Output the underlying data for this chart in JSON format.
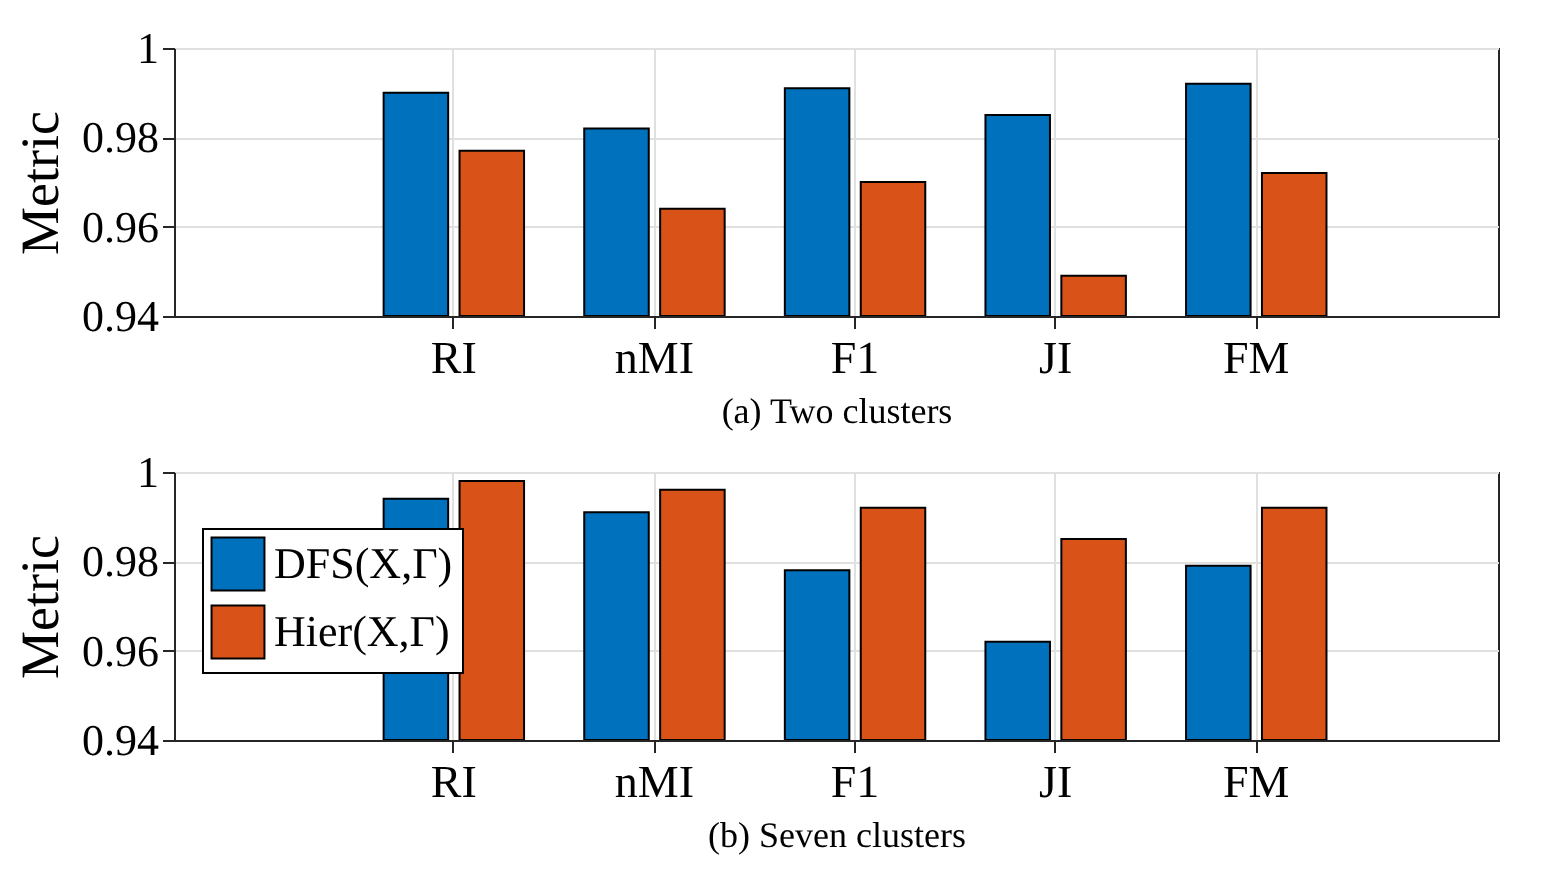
{
  "chart_data": [
    {
      "type": "bar",
      "xlabel": "(a) Two clusters",
      "ylabel": "Metric",
      "categories": [
        "RI",
        "nMI",
        "F1",
        "JI",
        "FM"
      ],
      "series": [
        {
          "color": "#0072bd",
          "values": [
            0.99,
            0.982,
            0.991,
            0.985,
            0.992
          ]
        },
        {
          "color": "#d95319",
          "values": [
            0.977,
            0.964,
            0.97,
            0.949,
            0.972
          ]
        }
      ],
      "ylim": [
        0.94,
        1
      ],
      "yticks": [
        0.94,
        0.96,
        0.98,
        1
      ],
      "grid": true,
      "legend": false
    },
    {
      "type": "bar",
      "xlabel": "(b) Seven clusters",
      "ylabel": "Metric",
      "categories": [
        "RI",
        "nMI",
        "F1",
        "JI",
        "FM"
      ],
      "series": [
        {
          "name": "DFS(X,Γ)",
          "color": "#0072bd",
          "values": [
            0.994,
            0.991,
            0.978,
            0.962,
            0.979
          ]
        },
        {
          "name": "Hier(X,Γ)",
          "color": "#d95319",
          "values": [
            0.998,
            0.996,
            0.992,
            0.985,
            0.992
          ]
        }
      ],
      "ylim": [
        0.94,
        1
      ],
      "yticks": [
        0.94,
        0.96,
        0.98,
        1
      ],
      "grid": true,
      "legend": "top left"
    }
  ]
}
